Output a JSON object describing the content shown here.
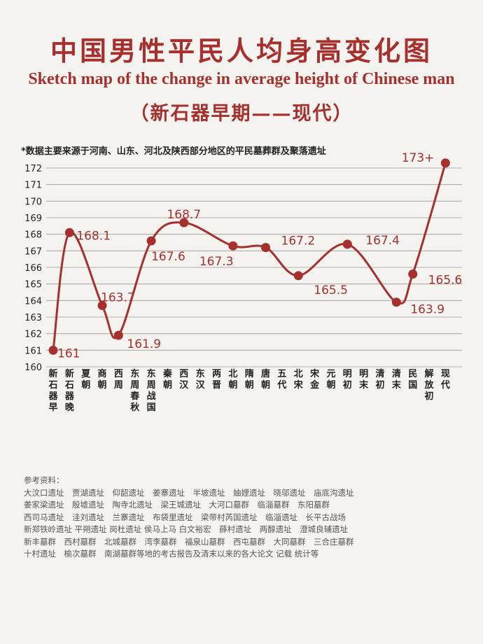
{
  "header": {
    "title_cn": "中国男性平民人均身高变化图",
    "title_en": "Sketch map of the change in average height of Chinese man",
    "subtitle": "（新石器早期——现代）"
  },
  "note": "*数据主要来源于河南、山东、河北及陕西部分地区的平民墓葬群及聚落遗址",
  "colors": {
    "accent": "#a5302e",
    "grid": "#9a9a9a",
    "label": "#a5302e",
    "axis_text": "#222222"
  },
  "chart_data": {
    "type": "line",
    "title": "中国男性平民人均身高变化图",
    "xlabel": "",
    "ylabel": "",
    "ylim": [
      160,
      173
    ],
    "yticks": [
      160,
      161,
      162,
      163,
      164,
      165,
      166,
      167,
      168,
      169,
      170,
      171,
      172
    ],
    "grid": true,
    "categories": [
      "新石器早",
      "新石器晚",
      "夏朝",
      "商朝",
      "西周",
      "东周春秋",
      "东周战国",
      "秦朝",
      "西汉",
      "东汉",
      "两晋",
      "北朝",
      "隋朝",
      "唐朝",
      "五代",
      "北宋",
      "宋金",
      "元朝",
      "明初",
      "明末",
      "清初",
      "清末",
      "民国",
      "解放初",
      "现代"
    ],
    "points": [
      {
        "x": "新石器早",
        "y": 161.0,
        "label": "161"
      },
      {
        "x": "新石器晚",
        "y": 168.1,
        "label": "168.1"
      },
      {
        "x": "商朝",
        "y": 163.7,
        "label": "163.7"
      },
      {
        "x": "西周",
        "y": 161.9,
        "label": "161.9"
      },
      {
        "x": "东周战国",
        "y": 167.6,
        "label": "167.6"
      },
      {
        "x": "西汉",
        "y": 168.7,
        "label": "168.7"
      },
      {
        "x": "北朝",
        "y": 167.3,
        "label": "167.3"
      },
      {
        "x": "唐朝",
        "y": 167.2,
        "label": "167.2"
      },
      {
        "x": "北宋",
        "y": 165.5,
        "label": "165.5"
      },
      {
        "x": "明初",
        "y": 167.4,
        "label": "167.4"
      },
      {
        "x": "清末",
        "y": 163.9,
        "label": "163.9"
      },
      {
        "x": "民国",
        "y": 165.6,
        "label": "165.6"
      },
      {
        "x": "现代",
        "y": 173.0,
        "label": "173+"
      }
    ]
  },
  "references": {
    "heading": "参考资料：",
    "lines": [
      "大汶口遗址　贾湖遗址　仰韶遗址　姜寨遗址　半坡遗址　妯娌遗址　晓邬遗址　庙底沟遗址",
      "姜家梁遗址　殷墟遗址　陶寺北遗址　梁王城遗址　大河口墓群　临淄墓群　东阳墓群",
      "西司马遗址　洼刘遗址　兰寨遗址　布袋里遗址　梁带村芮国遗址　临淄遗址　长平古战场",
      "新郑铁岭遗址 平朔遗址 岗杜遗址 侯马上马 白文裕宏　薛村遗址　两醇遗址　澄城良辅遗址",
      "新丰墓群　西村墓群　北城墓群　湾李墓群　福泉山墓群　西屯墓群　大同墓群　三合庄墓群",
      "十村遗址　榆次墓群　南湖墓群等地的考古报告及清末以来的各大论文 记载 统计等"
    ]
  }
}
